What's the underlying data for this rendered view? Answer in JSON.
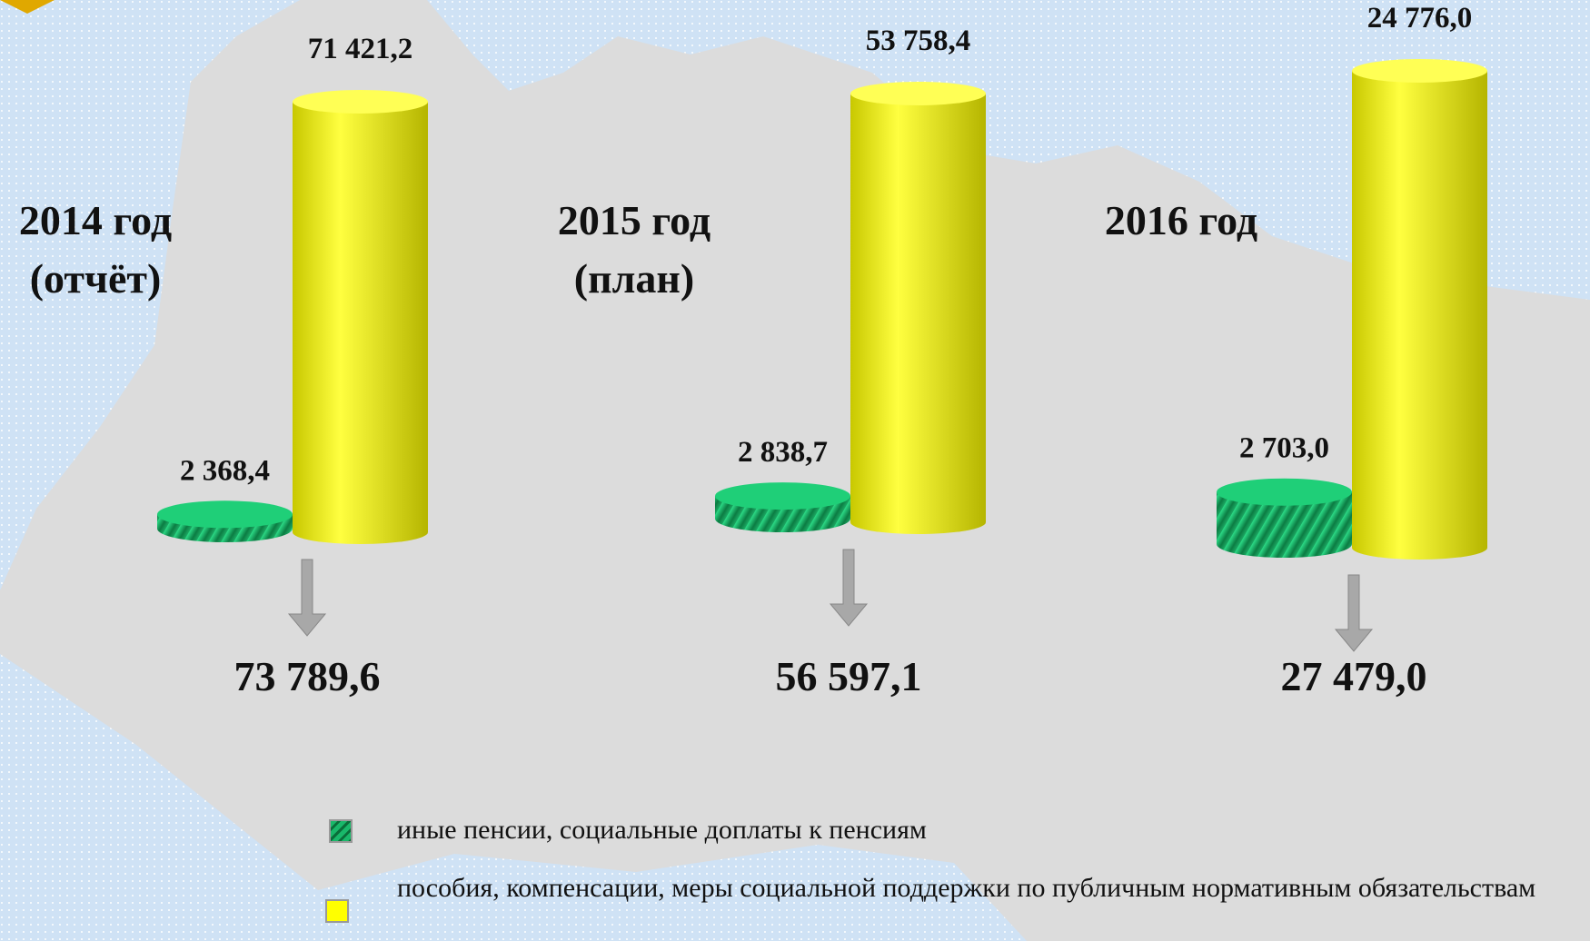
{
  "chart_data": [
    {
      "type": "bar",
      "title": "2014 год",
      "subtitle": "(отчёт)",
      "series": [
        {
          "name": "иные пенсии, социальные доплаты к пенсиям",
          "color": "#19b86a",
          "values": [
            2368.4
          ],
          "value_labels": [
            "2 368,4"
          ]
        },
        {
          "name": "пособия, компенсации, меры социальной поддержки по публичным нормативным обязательствам",
          "color": "#ffff00",
          "values": [
            71421.2
          ],
          "value_labels": [
            "71 421,2"
          ]
        }
      ],
      "total": {
        "value": 73789.6,
        "label": "73 789,6"
      }
    },
    {
      "type": "bar",
      "title": "2015 год",
      "subtitle": "(план)",
      "series": [
        {
          "color": "#19b86a",
          "values": [
            2838.7
          ],
          "value_labels": [
            "2 838,7"
          ]
        },
        {
          "color": "#ffff00",
          "values": [
            53758.4
          ],
          "value_labels": [
            "53 758,4"
          ]
        }
      ],
      "total": {
        "value": 56597.1,
        "label": "56 597,1"
      }
    },
    {
      "type": "bar",
      "title": "2016 год",
      "series": [
        {
          "color": "#19b86a",
          "values": [
            2703.0
          ],
          "value_labels": [
            "2 703,0"
          ]
        },
        {
          "color": "#ffff00",
          "values": [
            24776.0
          ],
          "value_labels": [
            "24 776,0"
          ]
        }
      ],
      "total": {
        "value": 27479.0,
        "label": "27 479,0"
      }
    }
  ]
}
